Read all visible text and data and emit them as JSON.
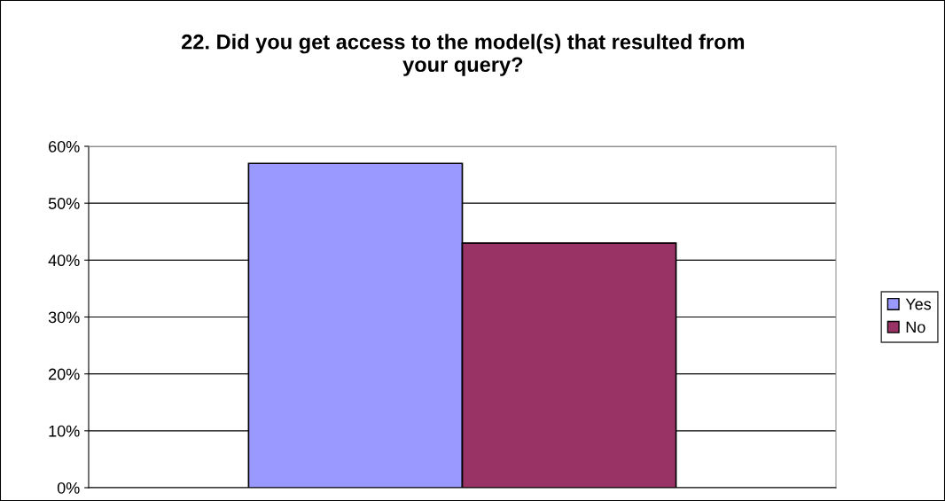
{
  "chart_data": {
    "type": "bar",
    "title": "22. Did you get access to the model(s) that resulted from\nyour query?",
    "categories": [
      null
    ],
    "series": [
      {
        "name": "Yes",
        "color": "#9999ff",
        "values": [
          57
        ]
      },
      {
        "name": "No",
        "color": "#993366",
        "values": [
          43
        ]
      }
    ],
    "ylim": [
      0,
      60
    ],
    "yticks": [
      {
        "value": 0,
        "label": "0%"
      },
      {
        "value": 10,
        "label": "10%"
      },
      {
        "value": 20,
        "label": "20%"
      },
      {
        "value": 30,
        "label": "30%"
      },
      {
        "value": 40,
        "label": "40%"
      },
      {
        "value": 50,
        "label": "50%"
      },
      {
        "value": 60,
        "label": "60%"
      }
    ],
    "grid": "y",
    "legend": "right"
  }
}
